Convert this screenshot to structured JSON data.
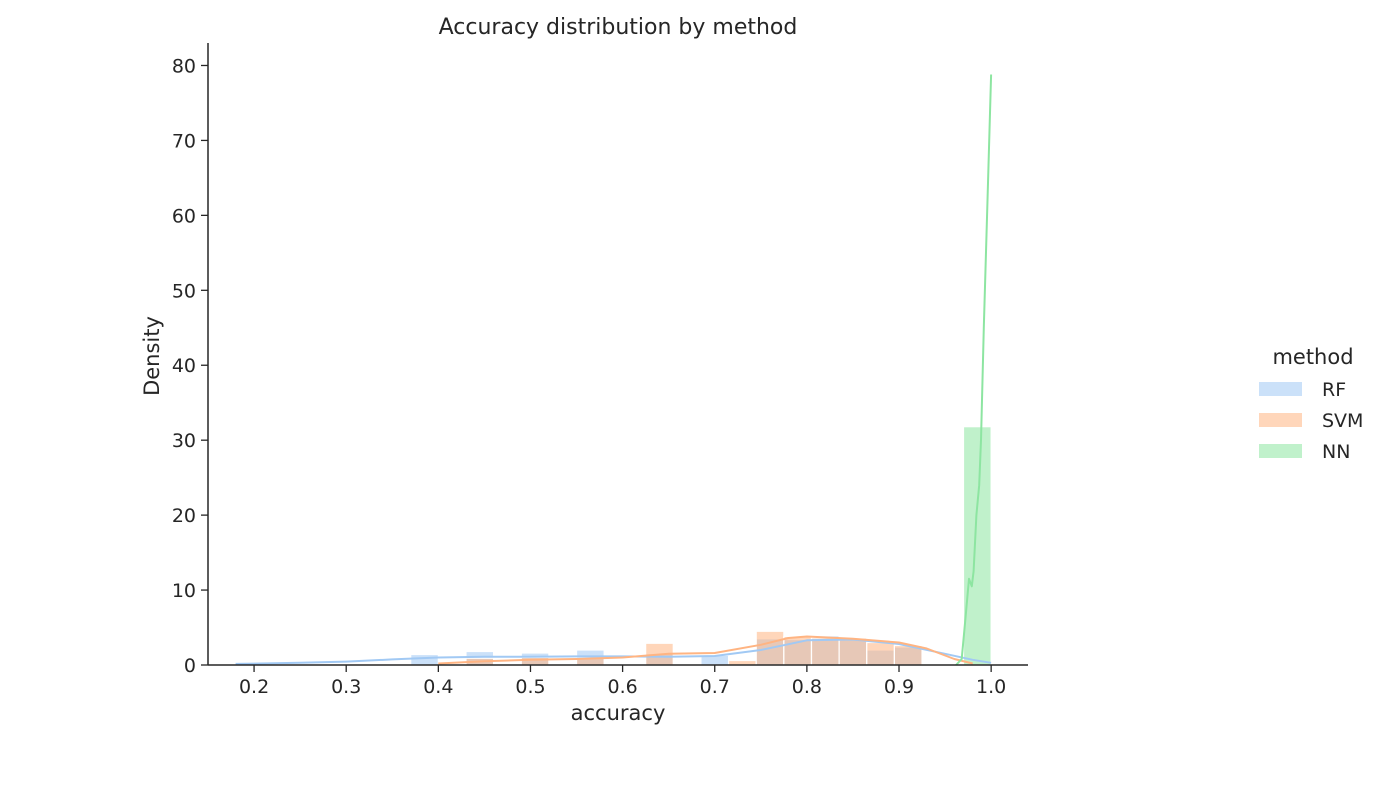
{
  "chart_data": {
    "type": "histogram",
    "title": "Accuracy distribution by method",
    "xlabel": "accuracy",
    "ylabel": "Density",
    "xlim": [
      0.15,
      1.04
    ],
    "ylim": [
      0,
      83
    ],
    "xticks": [
      "0.2",
      "0.3",
      "0.4",
      "0.5",
      "0.6",
      "0.7",
      "0.8",
      "0.9",
      "1.0"
    ],
    "yticks": [
      "0",
      "10",
      "20",
      "30",
      "40",
      "50",
      "60",
      "70",
      "80"
    ],
    "grid": false,
    "legend": {
      "title": "method",
      "position": "right",
      "entries": [
        "RF",
        "SVM",
        "NN"
      ]
    },
    "bin_width": 0.03,
    "series": [
      {
        "name": "RF",
        "color": "#a1c9f4",
        "bins": [
          {
            "x0": 0.37,
            "x1": 0.4,
            "density": 1.4
          },
          {
            "x0": 0.43,
            "x1": 0.46,
            "density": 1.8
          },
          {
            "x0": 0.49,
            "x1": 0.52,
            "density": 1.6
          },
          {
            "x0": 0.55,
            "x1": 0.58,
            "density": 2.0
          },
          {
            "x0": 0.625,
            "x1": 0.655,
            "density": 1.5
          },
          {
            "x0": 0.685,
            "x1": 0.715,
            "density": 1.3
          },
          {
            "x0": 0.745,
            "x1": 0.775,
            "density": 3.5
          },
          {
            "x0": 0.775,
            "x1": 0.805,
            "density": 3.4
          },
          {
            "x0": 0.805,
            "x1": 0.835,
            "density": 3.9
          },
          {
            "x0": 0.835,
            "x1": 0.865,
            "density": 3.4
          },
          {
            "x0": 0.865,
            "x1": 0.895,
            "density": 2.0
          },
          {
            "x0": 0.895,
            "x1": 0.925,
            "density": 2.4
          }
        ],
        "kde": [
          [
            0.18,
            0.15
          ],
          [
            0.25,
            0.3
          ],
          [
            0.3,
            0.45
          ],
          [
            0.35,
            0.75
          ],
          [
            0.4,
            1.0
          ],
          [
            0.45,
            1.1
          ],
          [
            0.5,
            1.1
          ],
          [
            0.55,
            1.15
          ],
          [
            0.6,
            1.15
          ],
          [
            0.65,
            1.1
          ],
          [
            0.7,
            1.2
          ],
          [
            0.75,
            2.0
          ],
          [
            0.8,
            3.3
          ],
          [
            0.85,
            3.4
          ],
          [
            0.9,
            2.8
          ],
          [
            0.95,
            1.5
          ],
          [
            0.98,
            0.7
          ],
          [
            1.0,
            0.3
          ]
        ]
      },
      {
        "name": "SVM",
        "color": "#ffb482",
        "bins": [
          {
            "x0": 0.43,
            "x1": 0.46,
            "density": 0.9
          },
          {
            "x0": 0.49,
            "x1": 0.52,
            "density": 1.0
          },
          {
            "x0": 0.55,
            "x1": 0.58,
            "density": 0.9
          },
          {
            "x0": 0.625,
            "x1": 0.655,
            "density": 2.9
          },
          {
            "x0": 0.715,
            "x1": 0.745,
            "density": 0.6
          },
          {
            "x0": 0.745,
            "x1": 0.775,
            "density": 4.5
          },
          {
            "x0": 0.775,
            "x1": 0.805,
            "density": 3.8
          },
          {
            "x0": 0.805,
            "x1": 0.835,
            "density": 3.6
          },
          {
            "x0": 0.835,
            "x1": 0.865,
            "density": 3.6
          },
          {
            "x0": 0.865,
            "x1": 0.895,
            "density": 3.0
          },
          {
            "x0": 0.895,
            "x1": 0.925,
            "density": 2.6
          }
        ],
        "kde": [
          [
            0.4,
            0.2
          ],
          [
            0.45,
            0.5
          ],
          [
            0.5,
            0.7
          ],
          [
            0.55,
            0.8
          ],
          [
            0.6,
            1.0
          ],
          [
            0.65,
            1.5
          ],
          [
            0.7,
            1.6
          ],
          [
            0.75,
            2.7
          ],
          [
            0.78,
            3.6
          ],
          [
            0.8,
            3.8
          ],
          [
            0.85,
            3.5
          ],
          [
            0.9,
            3.0
          ],
          [
            0.93,
            2.2
          ],
          [
            0.96,
            0.8
          ],
          [
            0.98,
            0.2
          ]
        ]
      },
      {
        "name": "NN",
        "color": "#8de5a1",
        "bins": [
          {
            "x0": 0.97,
            "x1": 1.0,
            "density": 31.8
          }
        ],
        "kde": [
          [
            0.962,
            0.0
          ],
          [
            0.968,
            0.8
          ],
          [
            0.972,
            6.0
          ],
          [
            0.976,
            11.5
          ],
          [
            0.979,
            10.5
          ],
          [
            0.981,
            12.5
          ],
          [
            0.984,
            20.0
          ],
          [
            0.987,
            24.0
          ],
          [
            0.989,
            30.0
          ],
          [
            0.992,
            45.0
          ],
          [
            0.996,
            62.0
          ],
          [
            1.0,
            78.8
          ]
        ]
      }
    ]
  }
}
